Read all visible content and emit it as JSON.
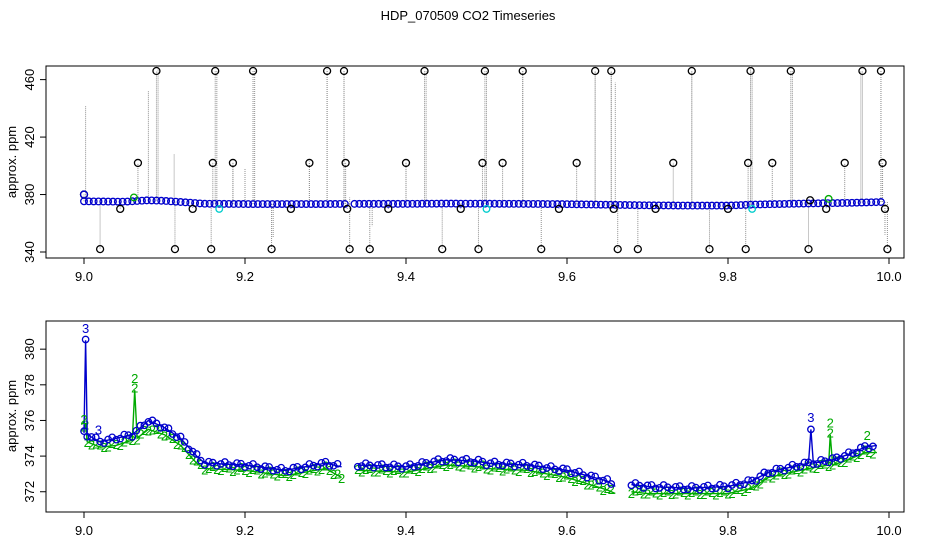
{
  "title": "HDP_070509  CO2 Timeseries",
  "colors": {
    "series1": "#000000",
    "series2": "#00aa00",
    "series3": "#0000cc",
    "series4": "#00cccc",
    "vline": "#909090"
  },
  "chart_data": [
    {
      "type": "scatter",
      "ylabel": "approx. ppm",
      "xlim": [
        9.0,
        10.0
      ],
      "ylim": [
        340,
        466
      ],
      "xticks": [
        "9.0",
        "9.2",
        "9.4",
        "9.6",
        "9.8",
        "10.0"
      ],
      "yticks": [
        "340",
        "380",
        "420",
        "460"
      ],
      "baseline": [
        [
          9.0,
          375.3
        ],
        [
          9.05,
          375.0
        ],
        [
          9.08,
          376.0
        ],
        [
          9.1,
          375.6
        ],
        [
          9.15,
          373.6
        ],
        [
          9.2,
          373.4
        ],
        [
          9.3,
          373.4
        ],
        [
          9.33,
          373.5
        ],
        [
          9.4,
          373.5
        ],
        [
          9.45,
          373.7
        ],
        [
          9.5,
          373.6
        ],
        [
          9.55,
          373.5
        ],
        [
          9.6,
          373.3
        ],
        [
          9.65,
          372.9
        ],
        [
          9.7,
          372.5
        ],
        [
          9.75,
          372.3
        ],
        [
          9.8,
          372.3
        ],
        [
          9.83,
          373.0
        ],
        [
          9.9,
          373.8
        ],
        [
          9.95,
          374.2
        ],
        [
          9.99,
          374.8
        ]
      ],
      "gap_x": [
        9.33
      ],
      "spikes": [
        {
          "x": 9.002,
          "y": 442
        },
        {
          "x": 9.08,
          "y": 452
        },
        {
          "x": 9.092,
          "y": 467
        },
        {
          "x": 9.112,
          "y": 408
        },
        {
          "x": 9.165,
          "y": 466
        },
        {
          "x": 9.185,
          "y": 402
        },
        {
          "x": 9.2,
          "y": 398
        },
        {
          "x": 9.212,
          "y": 467
        },
        {
          "x": 9.235,
          "y": 350
        },
        {
          "x": 9.28,
          "y": 403
        },
        {
          "x": 9.302,
          "y": 467
        },
        {
          "x": 9.323,
          "y": 466
        },
        {
          "x": 9.33,
          "y": 378
        },
        {
          "x": 9.358,
          "y": 358
        },
        {
          "x": 9.4,
          "y": 402
        },
        {
          "x": 9.425,
          "y": 466
        },
        {
          "x": 9.5,
          "y": 466
        },
        {
          "x": 9.545,
          "y": 466
        },
        {
          "x": 9.635,
          "y": 466
        },
        {
          "x": 9.655,
          "y": 466
        },
        {
          "x": 9.66,
          "y": 458
        },
        {
          "x": 9.755,
          "y": 466
        },
        {
          "x": 9.828,
          "y": 471
        },
        {
          "x": 9.83,
          "y": 466
        },
        {
          "x": 9.88,
          "y": 466
        },
        {
          "x": 9.965,
          "y": 466
        },
        {
          "x": 9.99,
          "y": 466
        },
        {
          "x": 9.995,
          "y": 352
        }
      ],
      "black_points": [
        {
          "x": 9.0,
          "y": 380
        },
        {
          "x": 9.02,
          "y": 342
        },
        {
          "x": 9.045,
          "y": 370
        },
        {
          "x": 9.067,
          "y": 402
        },
        {
          "x": 9.09,
          "y": 466
        },
        {
          "x": 9.113,
          "y": 342
        },
        {
          "x": 9.135,
          "y": 370
        },
        {
          "x": 9.158,
          "y": 342
        },
        {
          "x": 9.16,
          "y": 402
        },
        {
          "x": 9.163,
          "y": 466
        },
        {
          "x": 9.185,
          "y": 402
        },
        {
          "x": 9.21,
          "y": 466
        },
        {
          "x": 9.233,
          "y": 342
        },
        {
          "x": 9.257,
          "y": 370
        },
        {
          "x": 9.28,
          "y": 402
        },
        {
          "x": 9.302,
          "y": 466
        },
        {
          "x": 9.323,
          "y": 466
        },
        {
          "x": 9.325,
          "y": 402
        },
        {
          "x": 9.327,
          "y": 370
        },
        {
          "x": 9.33,
          "y": 342
        },
        {
          "x": 9.355,
          "y": 342
        },
        {
          "x": 9.378,
          "y": 370
        },
        {
          "x": 9.4,
          "y": 402
        },
        {
          "x": 9.423,
          "y": 466
        },
        {
          "x": 9.445,
          "y": 342
        },
        {
          "x": 9.468,
          "y": 370
        },
        {
          "x": 9.49,
          "y": 342
        },
        {
          "x": 9.495,
          "y": 402
        },
        {
          "x": 9.498,
          "y": 466
        },
        {
          "x": 9.52,
          "y": 402
        },
        {
          "x": 9.545,
          "y": 466
        },
        {
          "x": 9.568,
          "y": 342
        },
        {
          "x": 9.59,
          "y": 370
        },
        {
          "x": 9.612,
          "y": 402
        },
        {
          "x": 9.635,
          "y": 466
        },
        {
          "x": 9.655,
          "y": 466
        },
        {
          "x": 9.658,
          "y": 370
        },
        {
          "x": 9.663,
          "y": 342
        },
        {
          "x": 9.688,
          "y": 342
        },
        {
          "x": 9.71,
          "y": 370
        },
        {
          "x": 9.732,
          "y": 402
        },
        {
          "x": 9.755,
          "y": 466
        },
        {
          "x": 9.777,
          "y": 342
        },
        {
          "x": 9.8,
          "y": 370
        },
        {
          "x": 9.822,
          "y": 342
        },
        {
          "x": 9.825,
          "y": 402
        },
        {
          "x": 9.828,
          "y": 466
        },
        {
          "x": 9.855,
          "y": 402
        },
        {
          "x": 9.878,
          "y": 466
        },
        {
          "x": 9.9,
          "y": 342
        },
        {
          "x": 9.902,
          "y": 376
        },
        {
          "x": 9.922,
          "y": 370
        },
        {
          "x": 9.945,
          "y": 402
        },
        {
          "x": 9.967,
          "y": 466
        },
        {
          "x": 9.99,
          "y": 466
        },
        {
          "x": 9.992,
          "y": 402
        },
        {
          "x": 9.995,
          "y": 370
        },
        {
          "x": 9.998,
          "y": 342
        }
      ],
      "cyan_points": [
        {
          "x": 9.168,
          "y": 370
        },
        {
          "x": 9.5,
          "y": 370
        },
        {
          "x": 9.83,
          "y": 370
        }
      ],
      "green_points": [
        {
          "x": 9.062,
          "y": 378
        },
        {
          "x": 9.925,
          "y": 377
        }
      ]
    },
    {
      "type": "line",
      "ylabel": "approx. ppm",
      "xlim": [
        9.0,
        10.0
      ],
      "ylim": [
        371.2,
        381.3
      ],
      "xticks": [
        "9.0",
        "9.2",
        "9.4",
        "9.6",
        "9.8",
        "10.0"
      ],
      "yticks": [
        "372",
        "374",
        "376",
        "378",
        "380"
      ],
      "series": [
        {
          "name": "3",
          "values": [
            [
              9.0,
              375.3
            ],
            [
              9.002,
              380.5
            ],
            [
              9.004,
              375.2
            ],
            [
              9.02,
              374.8
            ],
            [
              9.04,
              375.0
            ],
            [
              9.06,
              375.2
            ],
            [
              9.08,
              376.0
            ],
            [
              9.1,
              375.6
            ],
            [
              9.12,
              375.0
            ],
            [
              9.14,
              374.0
            ],
            [
              9.15,
              373.6
            ],
            [
              9.2,
              373.5
            ],
            [
              9.25,
              373.2
            ],
            [
              9.3,
              373.6
            ],
            [
              9.32,
              373.4
            ],
            [
              9.33,
              null
            ],
            [
              9.34,
              373.5
            ],
            [
              9.4,
              373.4
            ],
            [
              9.45,
              373.8
            ],
            [
              9.49,
              373.7
            ],
            [
              9.5,
              373.6
            ],
            [
              9.55,
              373.5
            ],
            [
              9.6,
              373.2
            ],
            [
              9.65,
              372.6
            ],
            [
              9.66,
              372.3
            ],
            [
              9.67,
              null
            ],
            [
              9.68,
              372.4
            ],
            [
              9.7,
              372.3
            ],
            [
              9.75,
              372.2
            ],
            [
              9.8,
              372.3
            ],
            [
              9.83,
              372.6
            ],
            [
              9.85,
              373.1
            ],
            [
              9.9,
              373.6
            ],
            [
              9.903,
              375.5
            ],
            [
              9.906,
              373.6
            ],
            [
              9.93,
              373.8
            ],
            [
              9.95,
              374.1
            ],
            [
              9.97,
              374.5
            ],
            [
              9.985,
              374.6
            ]
          ]
        },
        {
          "name": "2",
          "values": [
            [
              9.0,
              375.5
            ],
            [
              9.002,
              375.8
            ],
            [
              9.004,
              374.8
            ],
            [
              9.02,
              374.5
            ],
            [
              9.04,
              374.6
            ],
            [
              9.06,
              374.9
            ],
            [
              9.063,
              377.7
            ],
            [
              9.066,
              375.0
            ],
            [
              9.08,
              375.5
            ],
            [
              9.1,
              375.2
            ],
            [
              9.12,
              374.6
            ],
            [
              9.14,
              373.6
            ],
            [
              9.15,
              373.3
            ],
            [
              9.2,
              373.2
            ],
            [
              9.25,
              372.9
            ],
            [
              9.3,
              373.3
            ],
            [
              9.32,
              372.8
            ],
            [
              9.33,
              null
            ],
            [
              9.34,
              373.2
            ],
            [
              9.4,
              373.1
            ],
            [
              9.45,
              373.5
            ],
            [
              9.49,
              373.4
            ],
            [
              9.5,
              373.3
            ],
            [
              9.55,
              373.2
            ],
            [
              9.6,
              372.8
            ],
            [
              9.65,
              372.1
            ],
            [
              9.66,
              371.9
            ],
            [
              9.67,
              null
            ],
            [
              9.68,
              372.0
            ],
            [
              9.7,
              371.9
            ],
            [
              9.75,
              371.9
            ],
            [
              9.8,
              371.9
            ],
            [
              9.83,
              372.2
            ],
            [
              9.85,
              372.8
            ],
            [
              9.9,
              373.3
            ],
            [
              9.925,
              373.5
            ],
            [
              9.927,
              375.2
            ],
            [
              9.93,
              373.5
            ],
            [
              9.95,
              373.8
            ],
            [
              9.97,
              374.2
            ],
            [
              9.985,
              374.2
            ]
          ]
        }
      ],
      "labels": [
        {
          "text": "3",
          "series": "3",
          "x": 9.002,
          "y": 380.9
        },
        {
          "text": "2",
          "series": "2",
          "x": 9.0,
          "y": 375.8
        },
        {
          "text": "3",
          "series": "3",
          "x": 9.018,
          "y": 375.2
        },
        {
          "text": "2",
          "series": "2",
          "x": 9.063,
          "y": 378.1
        },
        {
          "text": "3",
          "series": "3",
          "x": 9.903,
          "y": 375.9
        },
        {
          "text": "2",
          "series": "2",
          "x": 9.927,
          "y": 375.6
        },
        {
          "text": "2",
          "series": "2",
          "x": 9.973,
          "y": 374.9
        },
        {
          "text": "2",
          "series": "2",
          "x": 9.32,
          "y": 372.5
        }
      ]
    }
  ]
}
